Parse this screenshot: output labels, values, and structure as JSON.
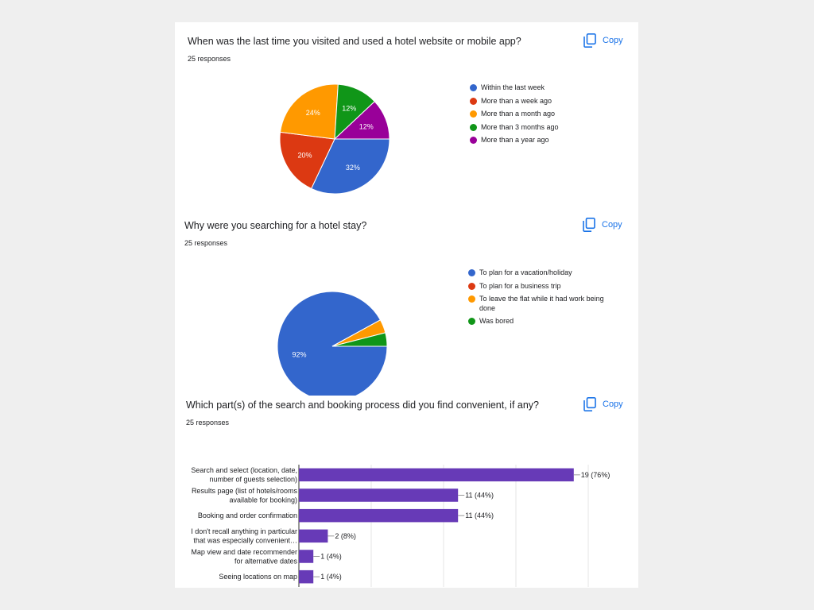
{
  "copy_label": "Copy",
  "colors": {
    "blue": "#3366cc",
    "red": "#dc3912",
    "orange": "#ff9900",
    "green": "#109618",
    "purple": "#990099",
    "bar": "#673ab7",
    "copy": "#1a73e8"
  },
  "icons": [
    "copy-icon"
  ],
  "chart_data": [
    {
      "type": "pie",
      "title": "When was the last time you visited and used a hotel website or mobile app?",
      "subtitle": "25 responses",
      "legend_position": "right",
      "series": [
        {
          "name": "Within the last week",
          "value": 32,
          "label": "32%",
          "color": "#3366cc"
        },
        {
          "name": "More than a week ago",
          "value": 20,
          "label": "20%",
          "color": "#dc3912"
        },
        {
          "name": "More than a month ago",
          "value": 24,
          "label": "24%",
          "color": "#ff9900"
        },
        {
          "name": "More than 3 months ago",
          "value": 12,
          "label": "12%",
          "color": "#109618"
        },
        {
          "name": "More than a year ago",
          "value": 12,
          "label": "12%",
          "color": "#990099"
        }
      ]
    },
    {
      "type": "pie",
      "title": "Why were you searching for a hotel stay?",
      "subtitle": "25 responses",
      "legend_position": "right",
      "series": [
        {
          "name": "To plan for a vacation/holiday",
          "value": 92,
          "label": "92%",
          "color": "#3366cc"
        },
        {
          "name": "To plan for a business trip",
          "value": 0,
          "label": "",
          "color": "#dc3912"
        },
        {
          "name": "To leave the flat while it had work being done",
          "value": 4,
          "label": "",
          "color": "#ff9900"
        },
        {
          "name": "Was bored",
          "value": 4,
          "label": "",
          "color": "#109618"
        }
      ]
    },
    {
      "type": "bar",
      "orientation": "horizontal",
      "title": "Which part(s) of the search and booking process did you find convenient, if any?",
      "subtitle": "25 responses",
      "categories": [
        [
          "Search and select (location, date,",
          "number of guests selection)"
        ],
        [
          "Results page (list of hotels/rooms",
          "available for booking)"
        ],
        [
          "Booking and order confirmation"
        ],
        [
          "I don't recall anything in particular",
          "that was especially convenient…"
        ],
        [
          "Map view and date recommender",
          "for alternative dates"
        ],
        [
          "Seeing locations on map"
        ]
      ],
      "values": [
        19,
        11,
        11,
        2,
        1,
        1
      ],
      "value_labels": [
        "19 (76%)",
        "11 (44%)",
        "11 (44%)",
        "2 (8%)",
        "1 (4%)",
        "1 (4%)"
      ],
      "xlim": [
        0,
        20
      ],
      "xticks": [
        "0",
        "5",
        "10",
        "15",
        "20"
      ],
      "grid": true
    }
  ]
}
